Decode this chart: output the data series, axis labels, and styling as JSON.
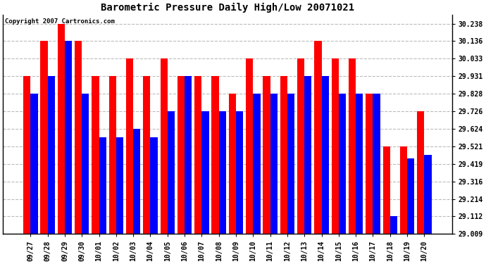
{
  "title": "Barometric Pressure Daily High/Low 20071021",
  "copyright": "Copyright 2007 Cartronics.com",
  "categories": [
    "09/27",
    "09/28",
    "09/29",
    "09/30",
    "10/01",
    "10/02",
    "10/03",
    "10/04",
    "10/05",
    "10/06",
    "10/07",
    "10/08",
    "10/09",
    "10/10",
    "10/11",
    "10/12",
    "10/13",
    "10/14",
    "10/15",
    "10/16",
    "10/17",
    "10/18",
    "10/19",
    "10/20"
  ],
  "highs": [
    29.931,
    30.136,
    30.238,
    30.136,
    29.931,
    29.931,
    30.033,
    29.931,
    30.033,
    29.931,
    29.931,
    29.931,
    29.828,
    30.033,
    29.931,
    29.931,
    30.033,
    30.136,
    30.033,
    30.033,
    29.828,
    29.521,
    29.521,
    29.726
  ],
  "lows": [
    29.828,
    29.931,
    30.136,
    29.828,
    29.575,
    29.575,
    29.624,
    29.575,
    29.726,
    29.931,
    29.726,
    29.726,
    29.726,
    29.828,
    29.828,
    29.828,
    29.931,
    29.931,
    29.828,
    29.828,
    29.828,
    29.112,
    29.449,
    29.47
  ],
  "high_color": "#ff0000",
  "low_color": "#0000ff",
  "bg_color": "#ffffff",
  "plot_bg_color": "#ffffff",
  "grid_color": "#bbbbbb",
  "yticks": [
    29.009,
    29.112,
    29.214,
    29.316,
    29.419,
    29.521,
    29.624,
    29.726,
    29.828,
    29.931,
    30.033,
    30.136,
    30.238
  ],
  "ymin": 29.009,
  "ymax": 30.29,
  "bar_width": 0.42
}
